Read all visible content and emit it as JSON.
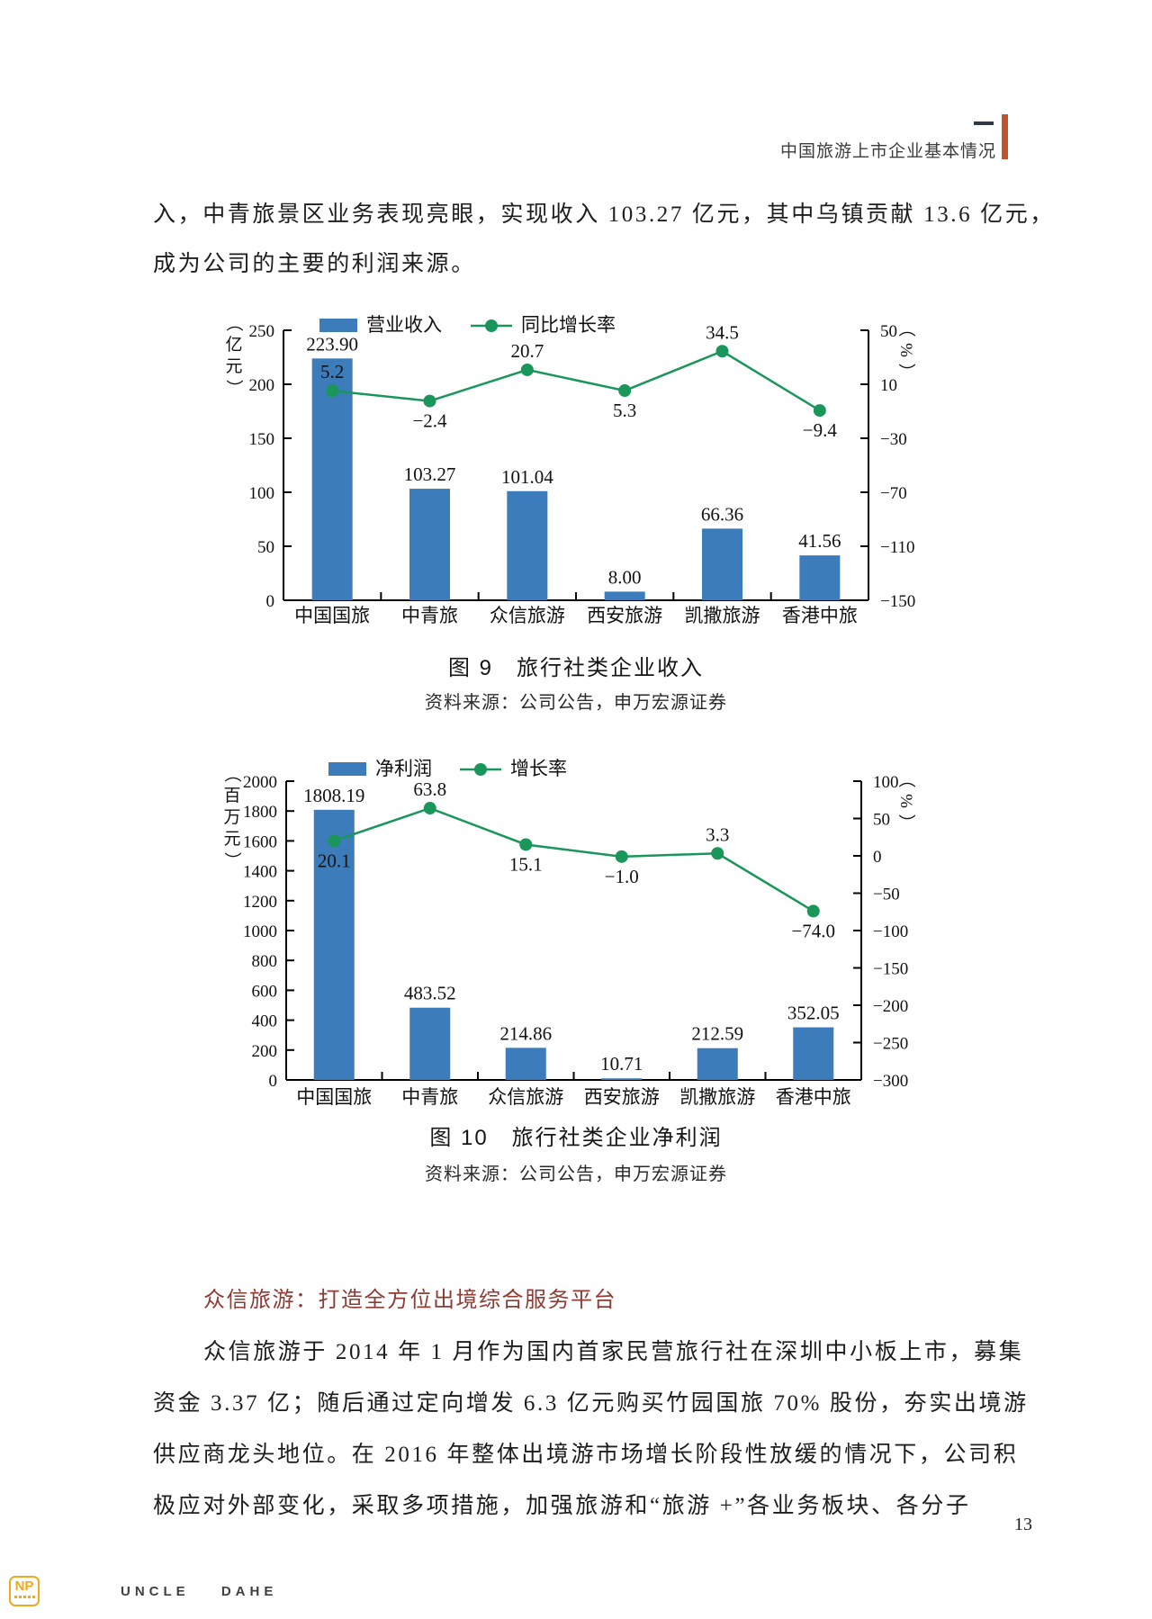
{
  "header": {
    "title": "中国旅游上市企业基本情况"
  },
  "intro": {
    "lines": [
      "入，中青旅景区业务表现亮眼，实现收入 103.27 亿元，其中乌镇贡献 13.6 亿元，",
      "成为公司的主要的利润来源。"
    ]
  },
  "section": {
    "heading": "众信旅游：打造全方位出境综合服务平台",
    "lines": [
      "众信旅游于 2014 年 1 月作为国内首家民营旅行社在深圳中小板上市，募集",
      "资金 3.37 亿；随后通过定向增发 6.3 亿元购买竹园国旅 70% 股份，夯实出境游",
      "供应商龙头地位。在 2016 年整体出境游市场增长阶段性放缓的情况下，公司积",
      "极应对外部变化，采取多项措施，加强旅游和“旅游 +”各业务板块、各分子"
    ]
  },
  "footer": {
    "page_number": "13",
    "logo_letters": "NP",
    "brand": "UNCLE DAHE"
  },
  "colors": {
    "accent_bar": "#c3532f",
    "heading_red": "#8e3b33",
    "bar_blue": "#3c7cbb",
    "line_green": "#1a965a"
  },
  "chart_data": [
    {
      "type": "bar+line",
      "caption": "图 9　旅行社类企业收入",
      "source": "资料来源：公司公告，申万宏源证券",
      "categories": [
        "中国国旅",
        "中青旅",
        "众信旅游",
        "西安旅游",
        "凯撒旅游",
        "香港中旅"
      ],
      "left_axis": {
        "unit": "（亿元）",
        "min": 0,
        "max": 250,
        "step": 50
      },
      "right_axis": {
        "unit": "（%）",
        "min": -150,
        "max": 50,
        "step": 40
      },
      "series": [
        {
          "name": "营业收入",
          "type": "bar",
          "axis": "left",
          "values": [
            223.9,
            103.27,
            101.04,
            8.0,
            66.36,
            41.56
          ],
          "labels": [
            "223.90",
            "103.27",
            "101.04",
            "8.00",
            "66.36",
            "41.56"
          ]
        },
        {
          "name": "同比增长率",
          "type": "line",
          "axis": "right",
          "values": [
            5.2,
            -2.4,
            20.7,
            5.3,
            34.5,
            -9.4
          ],
          "labels": [
            "5.2",
            "−2.4",
            "20.7",
            "5.3",
            "34.5",
            "−9.4"
          ],
          "label_pos": [
            "above",
            "below",
            "above",
            "below",
            "above",
            "below"
          ]
        }
      ]
    },
    {
      "type": "bar+line",
      "caption": "图 10　旅行社类企业净利润",
      "source": "资料来源：公司公告，申万宏源证券",
      "categories": [
        "中国国旅",
        "中青旅",
        "众信旅游",
        "西安旅游",
        "凯撒旅游",
        "香港中旅"
      ],
      "left_axis": {
        "unit": "（百万元）",
        "min": 0,
        "max": 2000,
        "step": 200
      },
      "right_axis": {
        "unit": "（%）",
        "min": -300,
        "max": 100,
        "step": 50
      },
      "series": [
        {
          "name": "净利润",
          "type": "bar",
          "axis": "left",
          "values": [
            1808.19,
            483.52,
            214.86,
            10.71,
            212.59,
            352.05
          ],
          "labels": [
            "1808.19",
            "483.52",
            "214.86",
            "10.71",
            "212.59",
            "352.05"
          ]
        },
        {
          "name": "增长率",
          "type": "line",
          "axis": "right",
          "values": [
            20.1,
            63.8,
            15.1,
            -1.0,
            3.3,
            -74.0
          ],
          "labels": [
            "20.1",
            "63.8",
            "15.1",
            "−1.0",
            "3.3",
            "−74.0"
          ],
          "label_pos": [
            "below",
            "above",
            "below",
            "below",
            "above",
            "below"
          ]
        }
      ]
    }
  ]
}
